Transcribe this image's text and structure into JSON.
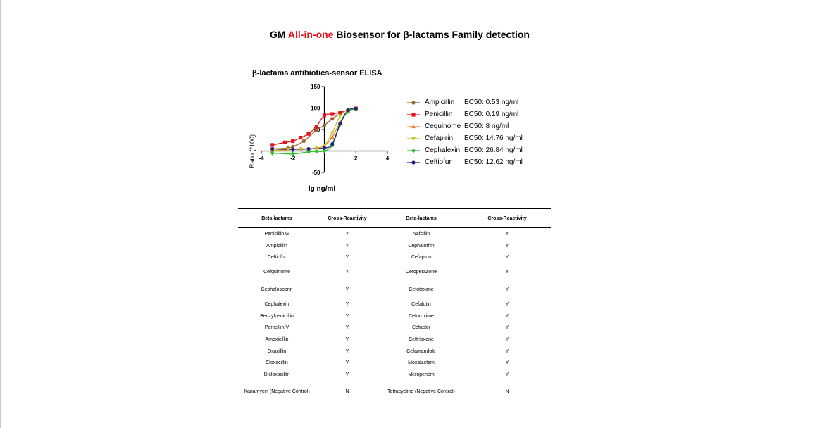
{
  "title": {
    "prefix": "GM ",
    "accent": "All-in-one",
    "suffix": " Biosensor for β-lactams Family detection"
  },
  "chart_data": {
    "type": "scatter",
    "title": "β-lactams antibiotics-sensor ELISA",
    "xlabel": "lg ng/ml",
    "ylabel": "Ratio (*100)",
    "xlim": [
      -4,
      4
    ],
    "ylim": [
      -50,
      150
    ],
    "x_ticks": [
      -4,
      -2,
      2,
      4
    ],
    "y_ticks": [
      -50,
      50,
      100,
      150
    ],
    "grid": false,
    "legend_position": "right",
    "series": [
      {
        "name": "Ampicillin",
        "ec50": "EC50: 0.53 ng/ml",
        "color": "#a0622d",
        "marker": "circle",
        "x": [
          -3.3,
          -2.3,
          -2.0,
          -1.3,
          -0.5,
          0.0,
          0.5,
          1.0,
          1.5,
          2.0
        ],
        "y": [
          5,
          7,
          10,
          23,
          49,
          60,
          75,
          87,
          96,
          99
        ]
      },
      {
        "name": "Penicillin",
        "ec50": "EC50: 0.19 ng/ml",
        "color": "#e3141b",
        "marker": "square",
        "x": [
          -3.3,
          -2.5,
          -2.0,
          -1.5,
          -1.0,
          -0.5,
          0.0,
          0.5,
          1.0,
          1.5,
          2.0
        ],
        "y": [
          14,
          20,
          23,
          31,
          40,
          57,
          83,
          86,
          90,
          94,
          99
        ]
      },
      {
        "name": "Cequinome",
        "ec50": "EC50: 8 ng/ml",
        "color": "#f07f2a",
        "marker": "triangle",
        "x": [
          -3.3,
          -2.3,
          -1.5,
          -1.0,
          -0.5,
          0.0,
          0.5,
          1.0,
          1.5,
          2.0
        ],
        "y": [
          0,
          3,
          5,
          5,
          7,
          12,
          32,
          67,
          93,
          98
        ]
      },
      {
        "name": "Cefapirin",
        "ec50": "EC50: 14.76 ng/ml",
        "color": "#c2c62a",
        "marker": "triangle-down",
        "x": [
          -3.3,
          -2.3,
          -1.5,
          -0.5,
          0.0,
          0.5,
          1.0,
          1.5,
          2.0
        ],
        "y": [
          1,
          4,
          5,
          6,
          13,
          42,
          82,
          95,
          97
        ]
      },
      {
        "name": "Cephalexin",
        "ec50": "EC50:  26.84 ng/ml",
        "color": "#2cc12c",
        "marker": "diamond",
        "x": [
          -3.3,
          -2.0,
          -1.0,
          -0.5,
          0.0,
          0.5,
          1.0,
          1.5,
          2.0
        ],
        "y": [
          -5,
          -7,
          -2,
          -1,
          0,
          13,
          62,
          92,
          98
        ]
      },
      {
        "name": "Ceftiofur",
        "ec50": "EC50: 12.62 ng/ml",
        "color": "#1c2480",
        "marker": "circle",
        "x": [
          -3.3,
          -2.0,
          -1.0,
          0.0,
          0.5,
          1.0,
          1.5,
          2.0
        ],
        "y": [
          5,
          4,
          5,
          7,
          16,
          64,
          95,
          99
        ]
      }
    ]
  },
  "table": {
    "headers": [
      "Beta-lactams",
      "Cross-Reactivity",
      "Beta-lactams",
      "Cross-Reactivity"
    ],
    "rows": [
      [
        "Penicillin G",
        "Y",
        "Nafcillin",
        "Y"
      ],
      [
        "Ampicillin",
        "Y",
        "Cephalothin",
        "Y"
      ],
      [
        "Ceftiofur",
        "Y",
        "Cefapirin",
        "Y"
      ],
      [
        "Cefquinome",
        "Y",
        "Cefoperazone",
        "Y"
      ],
      [
        "Cephalosporin",
        "Y",
        "Cefotaxime",
        "Y"
      ],
      [
        "Cephalexin",
        "Y",
        "Cefalotin",
        "Y"
      ],
      [
        "Benzylpenicillin",
        "Y",
        "Cefuroxime",
        "Y"
      ],
      [
        "Penicillin V",
        "Y",
        "Cefaclor",
        "Y"
      ],
      [
        "Amoxicillin",
        "Y",
        "Ceftriaxone",
        "Y"
      ],
      [
        "Oxacillin",
        "Y",
        "Cefamandole",
        "Y"
      ],
      [
        "Cloxacillin",
        "Y",
        "Moxalactam",
        "Y"
      ],
      [
        "Dicloxacillin",
        "Y",
        "Meropenem",
        "Y"
      ],
      [
        "Kanamycin (Negative Control)",
        "N",
        "Tetracycline (Negative Control)",
        "N"
      ]
    ]
  }
}
